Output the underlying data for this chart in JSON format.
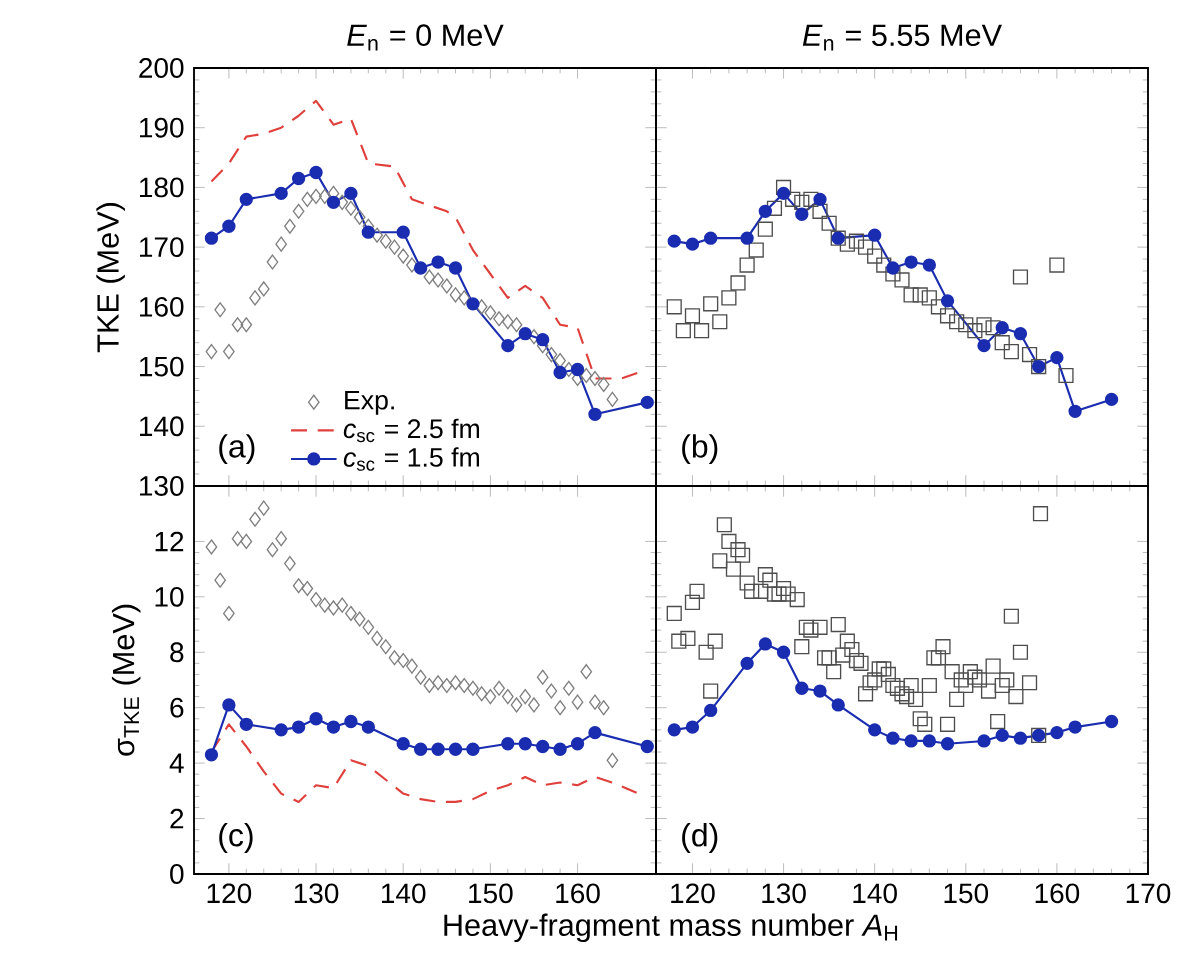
{
  "chart_data": [
    {
      "type": "line",
      "title": "*E*$_{n}$ = 0 MeV",
      "ylabel": "TKE (MeV)",
      "xlim": [
        116,
        169
      ],
      "ylim": [
        130,
        200
      ],
      "xticks": [
        120,
        130,
        140,
        150,
        160
      ],
      "yticks": [
        130,
        140,
        150,
        160,
        170,
        180,
        190,
        200
      ],
      "tick_labels": "y",
      "legend": "bottom",
      "annotations": [
        "(a)"
      ],
      "series": [
        {
          "name": "Exp.",
          "type": "scatter",
          "marker": "diamond",
          "color": "#7f7f7f",
          "x": [
            118,
            119,
            120,
            121,
            122,
            123,
            124,
            125,
            126,
            127,
            128,
            129,
            130,
            131,
            132,
            133,
            134,
            135,
            136,
            137,
            138,
            139,
            140,
            141,
            142,
            143,
            144,
            145,
            146,
            147,
            148,
            149,
            150,
            151,
            152,
            153,
            154,
            155,
            156,
            157,
            158,
            159,
            160,
            161,
            162,
            163,
            164
          ],
          "values": [
            152.5,
            159.5,
            152.5,
            157,
            157,
            161.5,
            163,
            167.5,
            170.5,
            173.5,
            176,
            178,
            178.5,
            178.5,
            179,
            177.5,
            176.5,
            175,
            173.5,
            172,
            171,
            170,
            168.5,
            167,
            null,
            165,
            164.5,
            163.5,
            162,
            161.5,
            null,
            160,
            159,
            158,
            157.5,
            157,
            null,
            155,
            153.5,
            152,
            151,
            149.5,
            148,
            148.5,
            148,
            147,
            144.5
          ]
        },
        {
          "name": "*c*$_{sc}$ = 2.5 fm",
          "type": "line",
          "marker": "none",
          "line_style": "dashed",
          "color": "#e0403c",
          "x": [
            118,
            120,
            122,
            124,
            126,
            128,
            130,
            132,
            134,
            136,
            139,
            141,
            143,
            145,
            146,
            148,
            150,
            152,
            154,
            156,
            158,
            160,
            162,
            165,
            167
          ],
          "values": [
            181,
            184,
            188.5,
            189,
            190,
            192,
            194.5,
            190.5,
            191.5,
            184,
            183.5,
            178,
            177,
            176,
            175,
            169.5,
            165.5,
            161.5,
            163.5,
            161.5,
            157,
            156.5,
            148,
            148,
            149
          ]
        },
        {
          "name": "*c*$_{sc}$ = 1.5 fm",
          "type": "line",
          "marker": "circle",
          "line_style": "solid",
          "color": "#1a2cb0",
          "x": [
            118,
            120,
            122,
            126,
            128,
            130,
            132,
            134,
            136,
            140,
            142,
            144,
            146,
            148,
            152,
            154,
            156,
            158,
            160,
            162,
            168
          ],
          "values": [
            171.5,
            173.5,
            178,
            179,
            181.5,
            182.5,
            177.5,
            179,
            172.5,
            172.5,
            166.5,
            167.5,
            166.5,
            160.5,
            153.5,
            155.5,
            154.5,
            149,
            149.5,
            142,
            144
          ]
        }
      ]
    },
    {
      "type": "line",
      "title": "*E*$_{n}$ = 5.55 MeV",
      "xlim": [
        116,
        170
      ],
      "ylim": [
        130,
        200
      ],
      "xticks": [
        120,
        130,
        140,
        150,
        160,
        170
      ],
      "yticks": [
        130,
        140,
        150,
        160,
        170,
        180,
        190,
        200
      ],
      "tick_labels": false,
      "legend": false,
      "annotations": [
        "(b)"
      ],
      "series": [
        {
          "type": "scatter",
          "marker": "square",
          "color": "#4d4d4d",
          "x": [
            118,
            119,
            120,
            121,
            122,
            123,
            124,
            125,
            126,
            127,
            128,
            129,
            130,
            131,
            132,
            133,
            134,
            135,
            136,
            137,
            138,
            139,
            140,
            141,
            142,
            143,
            144,
            145,
            146,
            147,
            148,
            149,
            150,
            151,
            152,
            153,
            154,
            155,
            156,
            157,
            158,
            159,
            160,
            161
          ],
          "values": [
            160,
            156,
            158.5,
            156,
            160.5,
            157.5,
            161.5,
            164,
            167,
            169.5,
            173,
            176.5,
            180,
            178,
            177.5,
            178,
            176,
            174,
            171.5,
            170.5,
            171,
            170,
            168.5,
            167,
            165.5,
            164.5,
            162,
            162,
            161.5,
            160,
            158.5,
            157.5,
            157,
            156,
            157,
            156.5,
            154,
            152.5,
            165,
            152,
            150,
            null,
            167,
            148.5
          ]
        },
        {
          "type": "line",
          "marker": "circle",
          "line_style": "solid",
          "color": "#1a2cb0",
          "x": [
            118,
            120,
            122,
            126,
            128,
            130,
            132,
            134,
            136,
            140,
            142,
            144,
            146,
            148,
            152,
            154,
            156,
            158,
            160,
            162,
            166
          ],
          "values": [
            171,
            170.5,
            171.5,
            171.5,
            176,
            179,
            175.5,
            178,
            171.5,
            172,
            166.5,
            167.5,
            167,
            161,
            153.5,
            156.5,
            155.5,
            150,
            151.5,
            142.5,
            144.5
          ]
        }
      ]
    },
    {
      "type": "line",
      "ylabel": "σ$_{TKE}$ (MeV)",
      "xlabel": "Heavy-fragment mass number *A*$_{H}$",
      "xlim": [
        116,
        169
      ],
      "ylim": [
        0,
        14
      ],
      "xticks": [
        120,
        130,
        140,
        150,
        160
      ],
      "yticks": [
        0,
        2,
        4,
        6,
        8,
        10,
        12
      ],
      "legend": false,
      "annotations": [
        "(c)"
      ],
      "series": [
        {
          "type": "scatter",
          "marker": "diamond",
          "color": "#7f7f7f",
          "x": [
            118,
            119,
            120,
            121,
            122,
            123,
            124,
            125,
            126,
            127,
            128,
            129,
            130,
            131,
            132,
            133,
            134,
            135,
            136,
            137,
            138,
            139,
            140,
            141,
            142,
            143,
            144,
            145,
            146,
            147,
            148,
            149,
            150,
            151,
            152,
            153,
            154,
            155,
            156,
            157,
            158,
            159,
            160,
            161,
            162,
            163,
            164
          ],
          "values": [
            11.8,
            10.6,
            9.4,
            12.1,
            12,
            12.8,
            13.2,
            11.7,
            12.1,
            11.2,
            10.4,
            10.3,
            9.9,
            9.7,
            9.6,
            9.7,
            9.4,
            9.2,
            8.9,
            8.5,
            8.2,
            7.8,
            7.7,
            7.5,
            7.1,
            6.8,
            6.9,
            6.8,
            6.9,
            6.8,
            6.7,
            6.5,
            6.4,
            6.7,
            6.4,
            6.1,
            6.4,
            6.1,
            7.1,
            6.6,
            6,
            6.7,
            6.2,
            7.3,
            6.2,
            6,
            4.1
          ]
        },
        {
          "type": "line",
          "marker": "none",
          "line_style": "dashed",
          "color": "#e0403c",
          "x": [
            118,
            120,
            122,
            124,
            126,
            128,
            130,
            132,
            134,
            136,
            138,
            140,
            142,
            144,
            146,
            148,
            150,
            152,
            154,
            156,
            158,
            160,
            162,
            164,
            167
          ],
          "values": [
            4.4,
            5.4,
            4.6,
            3.7,
            2.9,
            2.6,
            3.2,
            3.1,
            4.1,
            3.9,
            3.4,
            2.9,
            2.7,
            2.6,
            2.6,
            2.7,
            3,
            3.2,
            3.5,
            3.2,
            3.3,
            3.2,
            3.5,
            3.3,
            2.9
          ]
        },
        {
          "type": "line",
          "marker": "circle",
          "line_style": "solid",
          "color": "#1a2cb0",
          "x": [
            118,
            120,
            122,
            126,
            128,
            130,
            132,
            134,
            136,
            140,
            142,
            144,
            146,
            148,
            152,
            154,
            156,
            158,
            160,
            162,
            168
          ],
          "values": [
            4.3,
            6.1,
            5.4,
            5.2,
            5.3,
            5.6,
            5.3,
            5.5,
            5.3,
            4.7,
            4.5,
            4.5,
            4.5,
            4.5,
            4.7,
            4.7,
            4.6,
            4.5,
            4.7,
            5.1,
            4.6
          ]
        }
      ]
    },
    {
      "type": "line",
      "xlim": [
        116,
        170
      ],
      "ylim": [
        0,
        14
      ],
      "xticks": [
        120,
        130,
        140,
        150,
        160,
        170
      ],
      "yticks": [
        0,
        2,
        4,
        6,
        8,
        10,
        12
      ],
      "tick_labels": "x",
      "legend": false,
      "annotations": [
        "(d)"
      ],
      "series": [
        {
          "type": "scatter",
          "marker": "square",
          "color": "#4d4d4d",
          "x": [
            118,
            118.5,
            119.5,
            120,
            120.5,
            121.5,
            122,
            122.5,
            123,
            123.5,
            124,
            124.5,
            125,
            125.5,
            126,
            126.5,
            127.5,
            128,
            128.5,
            129,
            129.5,
            130,
            130.5,
            131.5,
            132,
            132.5,
            133,
            134,
            134.5,
            135,
            135.5,
            136,
            136.5,
            137,
            137.5,
            138,
            138.5,
            139,
            139.5,
            140,
            140.5,
            141,
            141.5,
            142,
            142.5,
            143,
            143.5,
            144,
            144.5,
            145,
            145.5,
            146,
            146.5,
            147,
            147.5,
            148,
            148.5,
            149,
            149.5,
            150,
            150.5,
            151,
            151.5,
            152.5,
            153,
            153.5,
            154,
            154.5,
            155,
            155.5,
            156,
            157,
            158,
            158.2
          ],
          "values": [
            9.4,
            8.4,
            8.5,
            9.8,
            10.2,
            8,
            6.6,
            8.4,
            11.3,
            12.6,
            12,
            11,
            11.7,
            11.5,
            10.5,
            10.2,
            10.2,
            10.8,
            10.6,
            10.1,
            10.1,
            10.3,
            10.1,
            9.9,
            8.2,
            8.9,
            8.8,
            8.9,
            7.8,
            7.8,
            7.3,
            9,
            7.9,
            8.4,
            8.1,
            7.7,
            7.6,
            6.5,
            6.9,
            7,
            7.4,
            7.4,
            7.2,
            6.8,
            6.7,
            6.5,
            6.4,
            6.8,
            6.3,
            5.6,
            5.4,
            6.8,
            7.8,
            7.8,
            8.2,
            5.4,
            7.3,
            6.3,
            7,
            6.8,
            7.3,
            7.1,
            7,
            6.6,
            7.5,
            5.5,
            6.8,
            7,
            9.3,
            6.4,
            8,
            6.9,
            5,
            13
          ]
        },
        {
          "type": "line",
          "marker": "circle",
          "line_style": "solid",
          "color": "#1a2cb0",
          "x": [
            118,
            120,
            122,
            126,
            128,
            130,
            132,
            134,
            136,
            140,
            142,
            144,
            146,
            148,
            152,
            154,
            156,
            158,
            160,
            162,
            166
          ],
          "values": [
            5.2,
            5.3,
            5.9,
            7.6,
            8.3,
            8,
            6.7,
            6.6,
            6.1,
            5.2,
            4.9,
            4.8,
            4.8,
            4.7,
            4.8,
            5,
            4.9,
            5,
            5.1,
            5.3,
            5.5
          ]
        }
      ]
    }
  ]
}
